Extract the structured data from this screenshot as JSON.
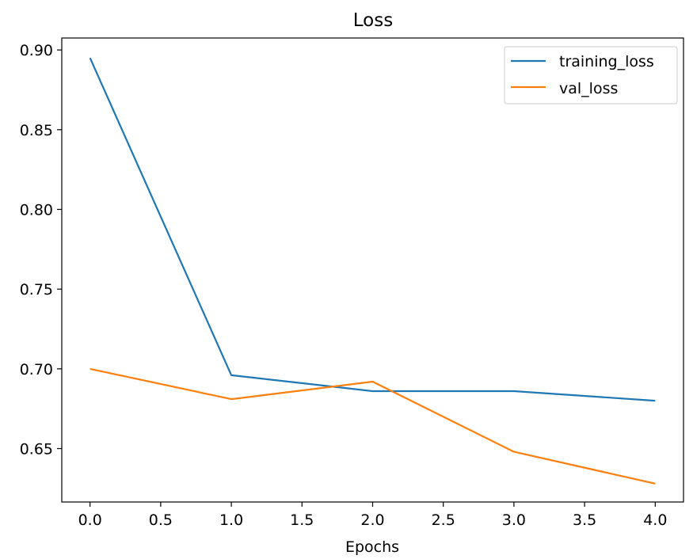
{
  "chart_data": {
    "type": "line",
    "title": "Loss",
    "xlabel": "Epochs",
    "ylabel": "",
    "x": [
      0,
      1,
      2,
      3,
      4
    ],
    "series": [
      {
        "name": "training_loss",
        "color": "#1f77b4",
        "values": [
          0.895,
          0.696,
          0.686,
          0.686,
          0.68
        ]
      },
      {
        "name": "val_loss",
        "color": "#ff7f0e",
        "values": [
          0.7,
          0.681,
          0.692,
          0.648,
          0.628
        ]
      }
    ],
    "xlim": [
      -0.2,
      4.2
    ],
    "ylim": [
      0.6165,
      0.9075
    ],
    "xticks": [
      0.0,
      0.5,
      1.0,
      1.5,
      2.0,
      2.5,
      3.0,
      3.5,
      4.0
    ],
    "xtick_labels": [
      "0.0",
      "0.5",
      "1.0",
      "1.5",
      "2.0",
      "2.5",
      "3.0",
      "3.5",
      "4.0"
    ],
    "yticks": [
      0.65,
      0.7,
      0.75,
      0.8,
      0.85,
      0.9
    ],
    "ytick_labels": [
      "0.65",
      "0.70",
      "0.75",
      "0.80",
      "0.85",
      "0.90"
    ],
    "grid": false,
    "legend_position": "top-right"
  }
}
